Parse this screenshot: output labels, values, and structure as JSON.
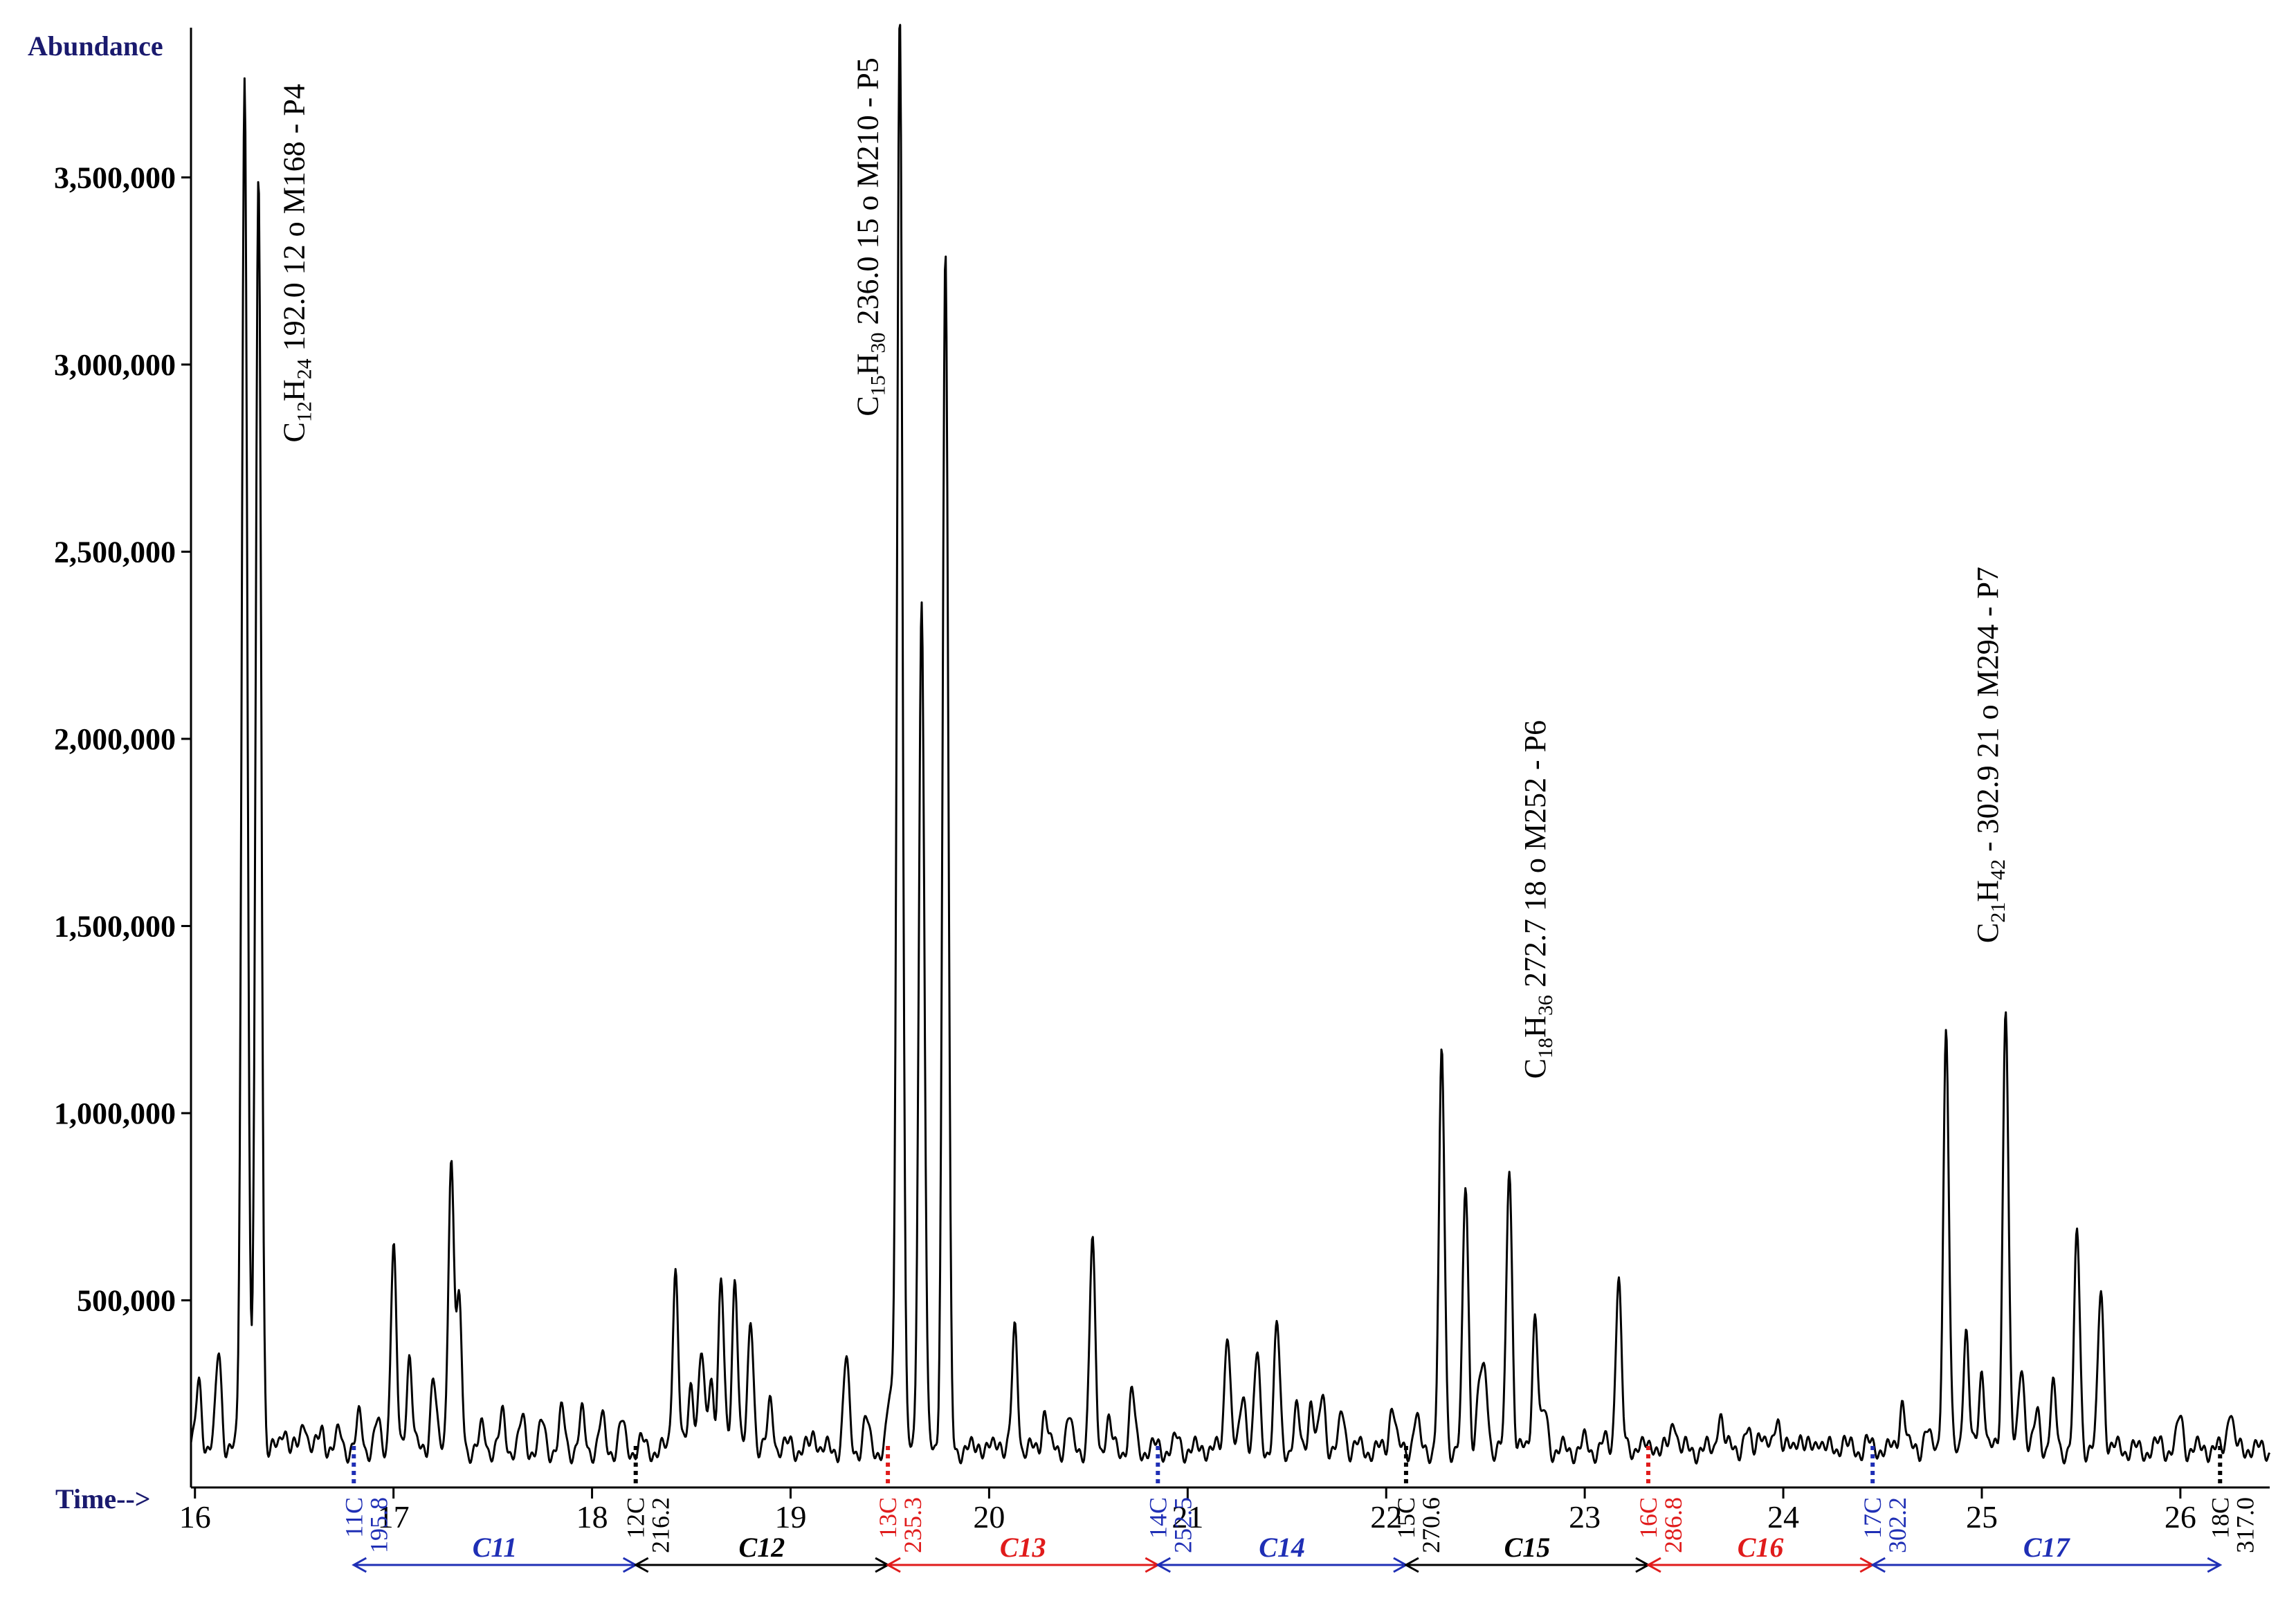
{
  "chart_data": {
    "type": "line",
    "title": "",
    "ylabel": "Abundance",
    "xlabel": "Time-->",
    "xlim": [
      15.98,
      26.45
    ],
    "ylim": [
      0,
      3900000
    ],
    "grid": false,
    "legend": "none",
    "x_ticks": [
      16,
      17,
      18,
      19,
      20,
      21,
      22,
      23,
      24,
      25,
      26
    ],
    "x_tick_labels": [
      "16",
      "17",
      "18",
      "19",
      "20",
      "21",
      "22",
      "23",
      "24",
      "25",
      "26"
    ],
    "y_ticks": [
      500000,
      1000000,
      1500000,
      2000000,
      2500000,
      3000000,
      3500000
    ],
    "y_tick_labels": [
      "500,000",
      "1,000,000",
      "1,500,000",
      "2,000,000",
      "2,500,000",
      "3,000,000",
      "3,500,000"
    ],
    "baseline": 100000,
    "peaks": [
      [
        16.02,
        290000
      ],
      [
        16.12,
        370000
      ],
      [
        16.25,
        3780000
      ],
      [
        16.32,
        3490000
      ],
      [
        16.45,
        170000
      ],
      [
        16.55,
        190000
      ],
      [
        16.64,
        160000
      ],
      [
        16.73,
        150000
      ],
      [
        16.83,
        190000
      ],
      [
        16.92,
        170000
      ],
      [
        17.0,
        640000
      ],
      [
        17.08,
        360000
      ],
      [
        17.2,
        300000
      ],
      [
        17.29,
        880000
      ],
      [
        17.33,
        480000
      ],
      [
        17.45,
        160000
      ],
      [
        17.55,
        190000
      ],
      [
        17.65,
        180000
      ],
      [
        17.75,
        170000
      ],
      [
        17.85,
        200000
      ],
      [
        17.95,
        190000
      ],
      [
        18.05,
        180000
      ],
      [
        18.15,
        170000
      ],
      [
        18.25,
        120000
      ],
      [
        18.42,
        590000
      ],
      [
        18.5,
        280000
      ],
      [
        18.55,
        360000
      ],
      [
        18.6,
        290000
      ],
      [
        18.65,
        550000
      ],
      [
        18.72,
        570000
      ],
      [
        18.8,
        450000
      ],
      [
        18.9,
        230000
      ],
      [
        19.0,
        120000
      ],
      [
        19.12,
        150000
      ],
      [
        19.28,
        340000
      ],
      [
        19.38,
        180000
      ],
      [
        19.5,
        230000
      ],
      [
        19.55,
        3950000
      ],
      [
        19.66,
        2370000
      ],
      [
        19.78,
        3310000
      ],
      [
        19.95,
        120000
      ],
      [
        20.05,
        130000
      ],
      [
        20.13,
        420000
      ],
      [
        20.28,
        210000
      ],
      [
        20.4,
        190000
      ],
      [
        20.52,
        650000
      ],
      [
        20.6,
        180000
      ],
      [
        20.72,
        250000
      ],
      [
        20.85,
        110000
      ],
      [
        20.95,
        130000
      ],
      [
        21.08,
        110000
      ],
      [
        21.2,
        430000
      ],
      [
        21.28,
        260000
      ],
      [
        21.35,
        350000
      ],
      [
        21.45,
        430000
      ],
      [
        21.55,
        200000
      ],
      [
        21.62,
        230000
      ],
      [
        21.68,
        250000
      ],
      [
        21.78,
        200000
      ],
      [
        21.85,
        110000
      ],
      [
        21.93,
        100000
      ],
      [
        22.03,
        230000
      ],
      [
        22.15,
        190000
      ],
      [
        22.28,
        1150000
      ],
      [
        22.4,
        810000
      ],
      [
        22.47,
        270000
      ],
      [
        22.5,
        280000
      ],
      [
        22.62,
        870000
      ],
      [
        22.75,
        470000
      ],
      [
        22.8,
        200000
      ],
      [
        22.9,
        100000
      ],
      [
        23.0,
        120000
      ],
      [
        23.1,
        120000
      ],
      [
        23.17,
        570000
      ],
      [
        23.27,
        120000
      ],
      [
        23.35,
        120000
      ],
      [
        23.45,
        190000
      ],
      [
        23.58,
        100000
      ],
      [
        23.68,
        200000
      ],
      [
        23.75,
        120000
      ],
      [
        23.82,
        140000
      ],
      [
        23.88,
        160000
      ],
      [
        23.97,
        200000
      ],
      [
        24.08,
        150000
      ],
      [
        24.18,
        140000
      ],
      [
        24.3,
        130000
      ],
      [
        24.42,
        120000
      ],
      [
        24.5,
        110000
      ],
      [
        24.6,
        240000
      ],
      [
        24.72,
        160000
      ],
      [
        24.82,
        1220000
      ],
      [
        24.92,
        420000
      ],
      [
        25.0,
        320000
      ],
      [
        25.12,
        1300000
      ],
      [
        25.2,
        340000
      ],
      [
        25.28,
        200000
      ],
      [
        25.36,
        260000
      ],
      [
        25.48,
        680000
      ],
      [
        25.6,
        540000
      ],
      [
        25.7,
        110000
      ],
      [
        25.8,
        100000
      ],
      [
        25.9,
        120000
      ],
      [
        26.0,
        190000
      ],
      [
        26.12,
        110000
      ],
      [
        26.25,
        220000
      ],
      [
        26.35,
        110000
      ]
    ],
    "annotations": [
      {
        "x": 16.55,
        "y_top": 3750000,
        "C": "12",
        "H": "24",
        "text": "192.0 12 o M168 - P4"
      },
      {
        "x": 19.44,
        "y_top": 3820000,
        "C": "15",
        "H": "30",
        "text": "236.0 15 o M210 - P5"
      },
      {
        "x": 22.8,
        "y_top": 2050000,
        "C": "18",
        "H": "36",
        "text": "272.7 18 o M252 - P6"
      },
      {
        "x": 25.08,
        "y_top": 2460000,
        "C": "21",
        "H": "42",
        "text": " - 302.9 21 o M294 - P7"
      }
    ],
    "carbon_boundaries": [
      {
        "label": "11C",
        "value": "195.8",
        "time": 16.8,
        "color": "#1f2fb5"
      },
      {
        "label": "12C",
        "value": "216.2",
        "time": 18.22,
        "color": "#000000"
      },
      {
        "label": "13C",
        "value": "235.3",
        "time": 19.49,
        "color": "#e01b1b"
      },
      {
        "label": "14C",
        "value": "252.5",
        "time": 20.85,
        "color": "#1f2fb5"
      },
      {
        "label": "15C",
        "value": "270.6",
        "time": 22.1,
        "color": "#000000"
      },
      {
        "label": "16C",
        "value": "286.8",
        "time": 23.32,
        "color": "#e01b1b"
      },
      {
        "label": "17C",
        "value": "302.2",
        "time": 24.45,
        "color": "#1f2fb5"
      },
      {
        "label": "18C",
        "value": "317.0",
        "time": 26.2,
        "color": "#000000"
      }
    ],
    "carbon_ranges": [
      {
        "label": "C11",
        "from": 16.8,
        "to": 18.22,
        "color": "#1f2fb5"
      },
      {
        "label": "C12",
        "from": 18.22,
        "to": 19.49,
        "color": "#000000"
      },
      {
        "label": "C13",
        "from": 19.49,
        "to": 20.85,
        "color": "#e01b1b"
      },
      {
        "label": "C14",
        "from": 20.85,
        "to": 22.1,
        "color": "#1f2fb5"
      },
      {
        "label": "C15",
        "from": 22.1,
        "to": 23.32,
        "color": "#000000"
      },
      {
        "label": "C16",
        "from": 23.32,
        "to": 24.45,
        "color": "#e01b1b"
      },
      {
        "label": "C17",
        "from": 24.45,
        "to": 26.2,
        "color": "#1f2fb5"
      }
    ]
  }
}
